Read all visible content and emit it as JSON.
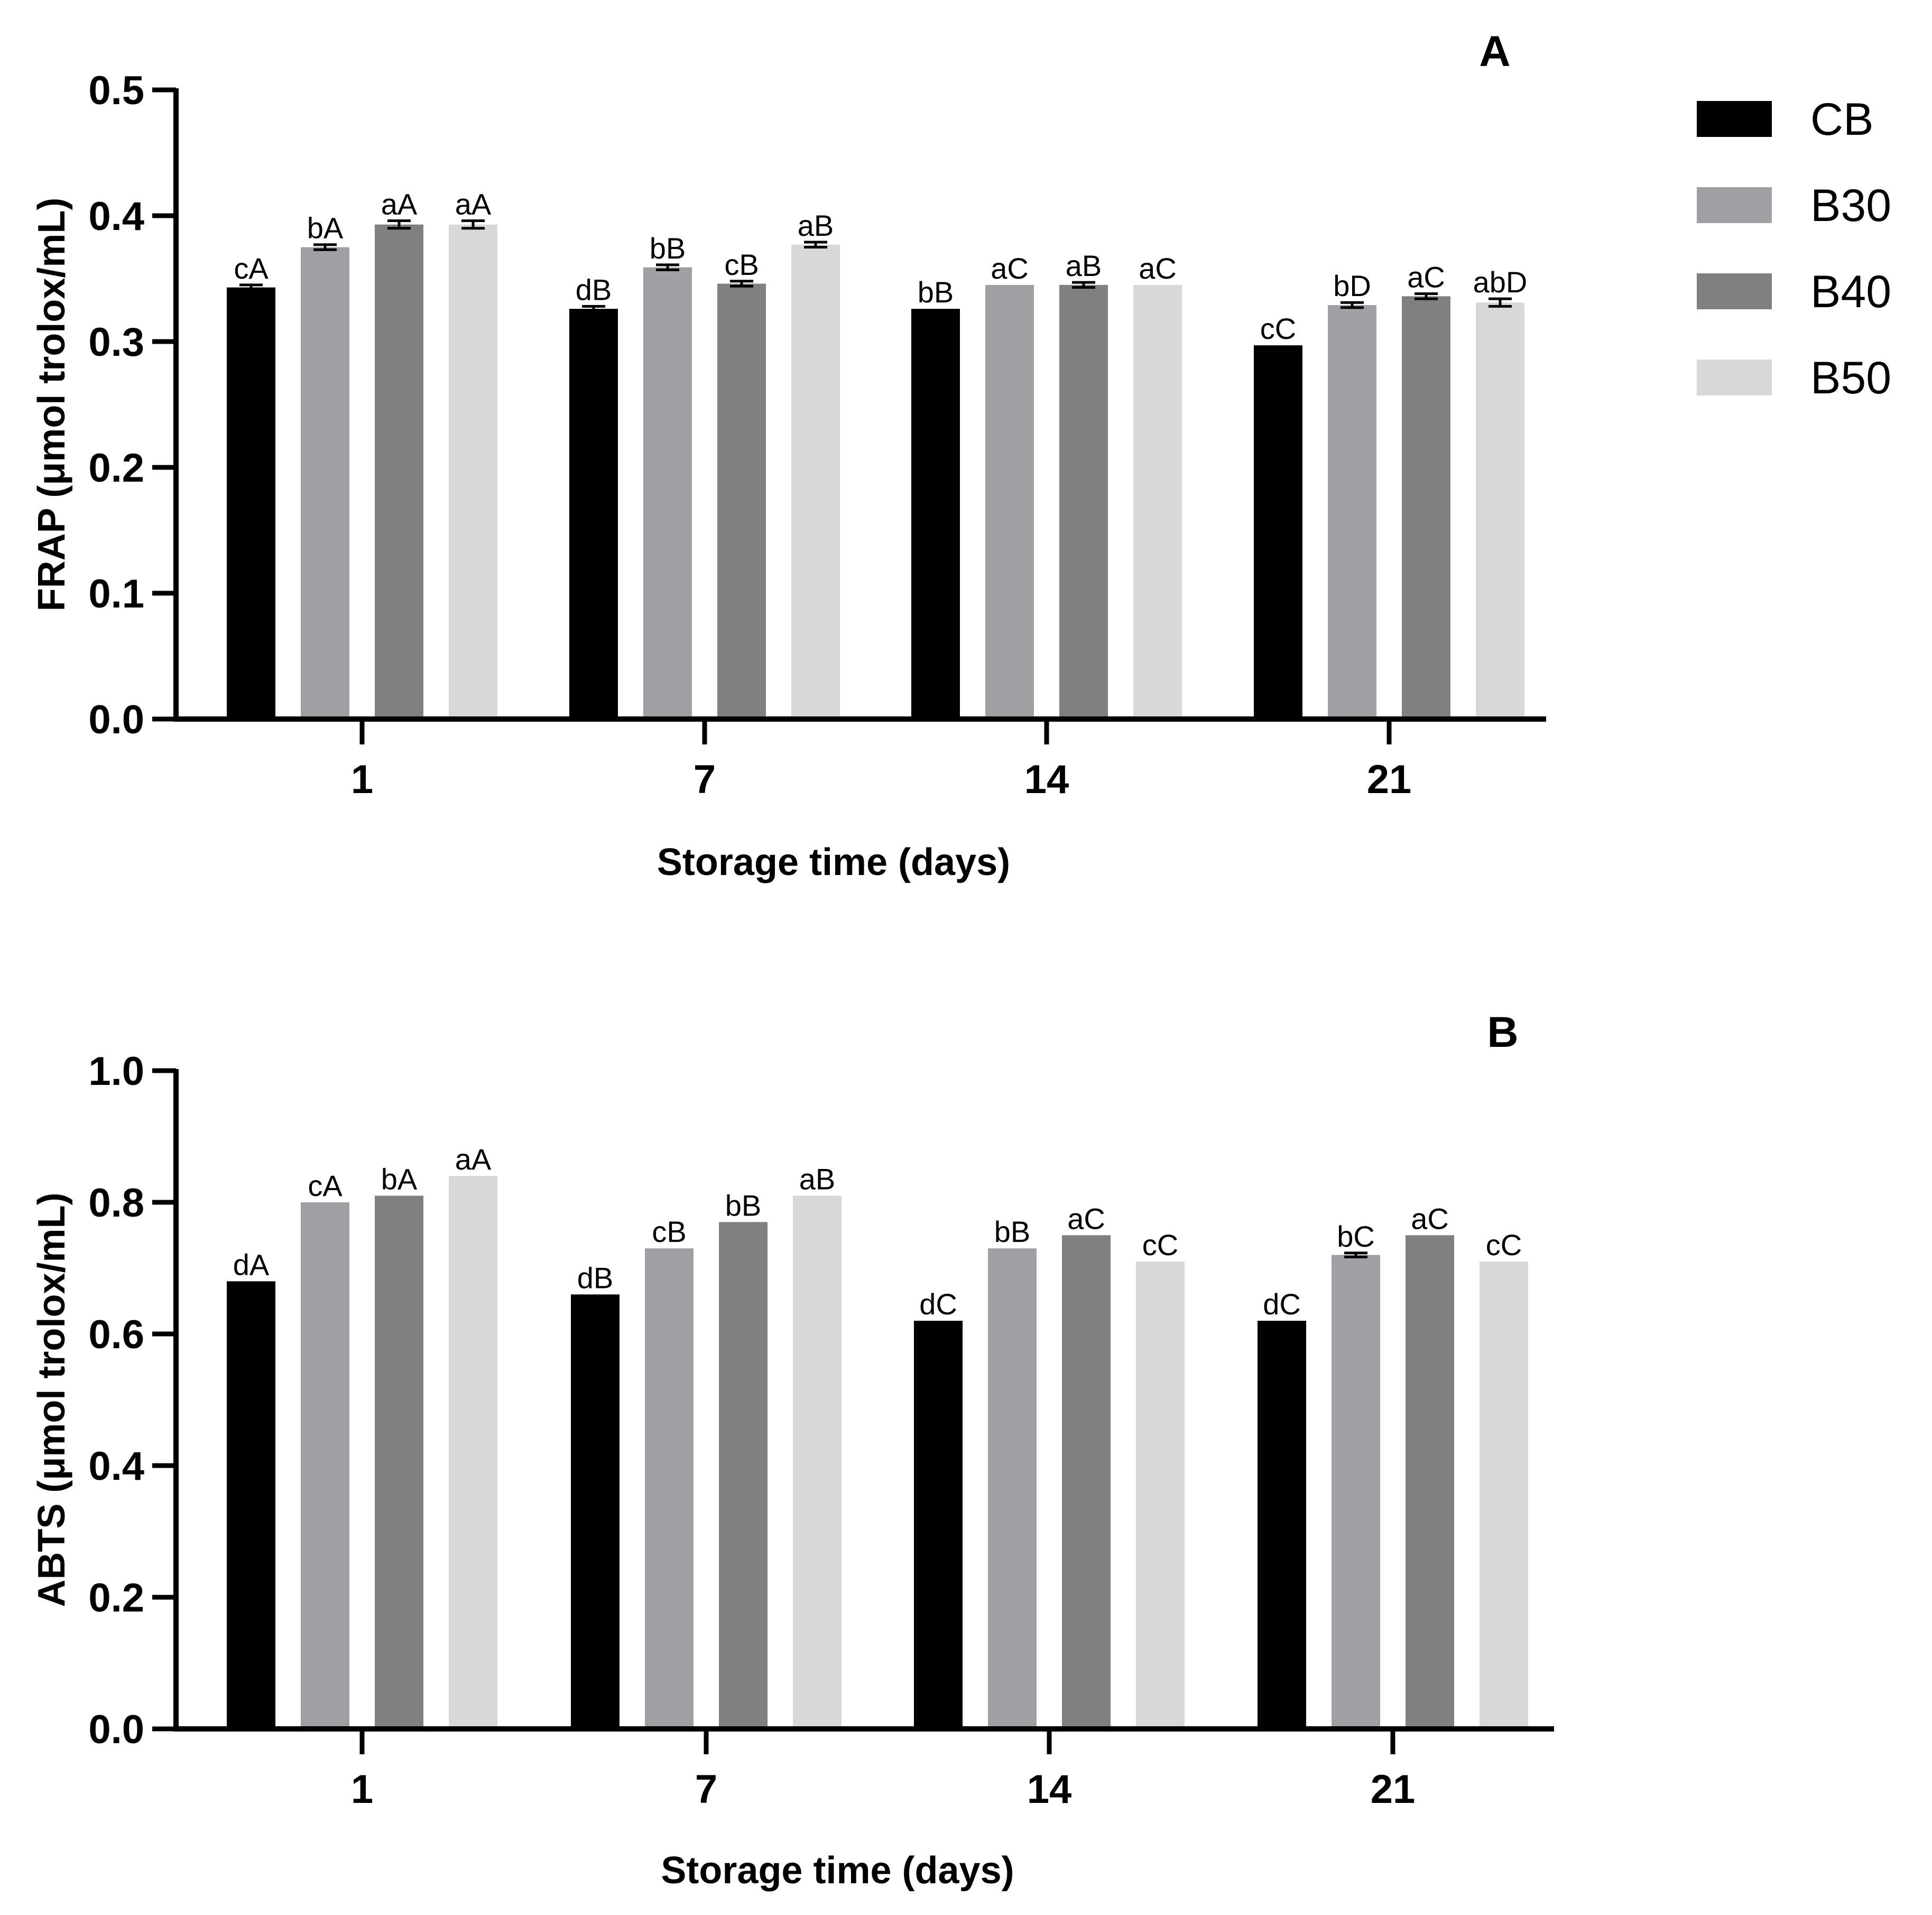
{
  "legend": {
    "items": [
      {
        "name": "CB",
        "color": "#000000"
      },
      {
        "name": "B30",
        "color": "#a0a0a4"
      },
      {
        "name": "B40",
        "color": "#808080"
      },
      {
        "name": "B50",
        "color": "#d8d8d8"
      }
    ]
  },
  "chart_data": [
    {
      "type": "bar",
      "panel_label": "A",
      "categories": [
        "1",
        "7",
        "14",
        "21"
      ],
      "xlabel": "Storage time (days)",
      "ylabel": "FRAP (μmol trolox/mL)",
      "ylim": [
        0,
        0.5
      ],
      "yticks": [
        "0.0",
        "0.1",
        "0.2",
        "0.3",
        "0.4",
        "0.5"
      ],
      "series": [
        {
          "name": "CB",
          "values": [
            0.343,
            0.326,
            0.326,
            0.297
          ],
          "errors": [
            0.002,
            0.002,
            0.0,
            0.0
          ],
          "labels": [
            "cA",
            "dB",
            "bB",
            "cC"
          ]
        },
        {
          "name": "B30",
          "values": [
            0.375,
            0.359,
            0.345,
            0.329
          ],
          "errors": [
            0.002,
            0.002,
            0.0,
            0.002
          ],
          "labels": [
            "bA",
            "bB",
            "aC",
            "bD"
          ]
        },
        {
          "name": "B40",
          "values": [
            0.393,
            0.346,
            0.345,
            0.336
          ],
          "errors": [
            0.003,
            0.002,
            0.002,
            0.002
          ],
          "labels": [
            "aA",
            "cB",
            "aB",
            "aC"
          ]
        },
        {
          "name": "B50",
          "values": [
            0.393,
            0.377,
            0.345,
            0.331
          ],
          "errors": [
            0.003,
            0.002,
            0.0,
            0.003
          ],
          "labels": [
            "aA",
            "aB",
            "aC",
            "abD"
          ]
        }
      ]
    },
    {
      "type": "bar",
      "panel_label": "B",
      "categories": [
        "1",
        "7",
        "14",
        "21"
      ],
      "xlabel": "Storage time (days)",
      "ylabel": "ABTS (μmol trolox/mL)",
      "ylim": [
        0,
        1.0
      ],
      "yticks": [
        "0.0",
        "0.2",
        "0.4",
        "0.6",
        "0.8",
        "1.0"
      ],
      "series": [
        {
          "name": "CB",
          "values": [
            0.68,
            0.66,
            0.62,
            0.62
          ],
          "errors": [
            0.0,
            0.0,
            0.0,
            0.0
          ],
          "labels": [
            "dA",
            "dB",
            "dC",
            "dC"
          ]
        },
        {
          "name": "B30",
          "values": [
            0.8,
            0.73,
            0.73,
            0.72
          ],
          "errors": [
            0.0,
            0.0,
            0.0,
            0.003
          ],
          "labels": [
            "cA",
            "cB",
            "bB",
            "bC"
          ]
        },
        {
          "name": "B40",
          "values": [
            0.81,
            0.77,
            0.75,
            0.75
          ],
          "errors": [
            0.0,
            0.0,
            0.0,
            0.0
          ],
          "labels": [
            "bA",
            "bB",
            "aC",
            "aC"
          ]
        },
        {
          "name": "B50",
          "values": [
            0.84,
            0.81,
            0.71,
            0.71
          ],
          "errors": [
            0.0,
            0.0,
            0.0,
            0.0
          ],
          "labels": [
            "aA",
            "aB",
            "cC",
            "cC"
          ]
        }
      ]
    }
  ]
}
